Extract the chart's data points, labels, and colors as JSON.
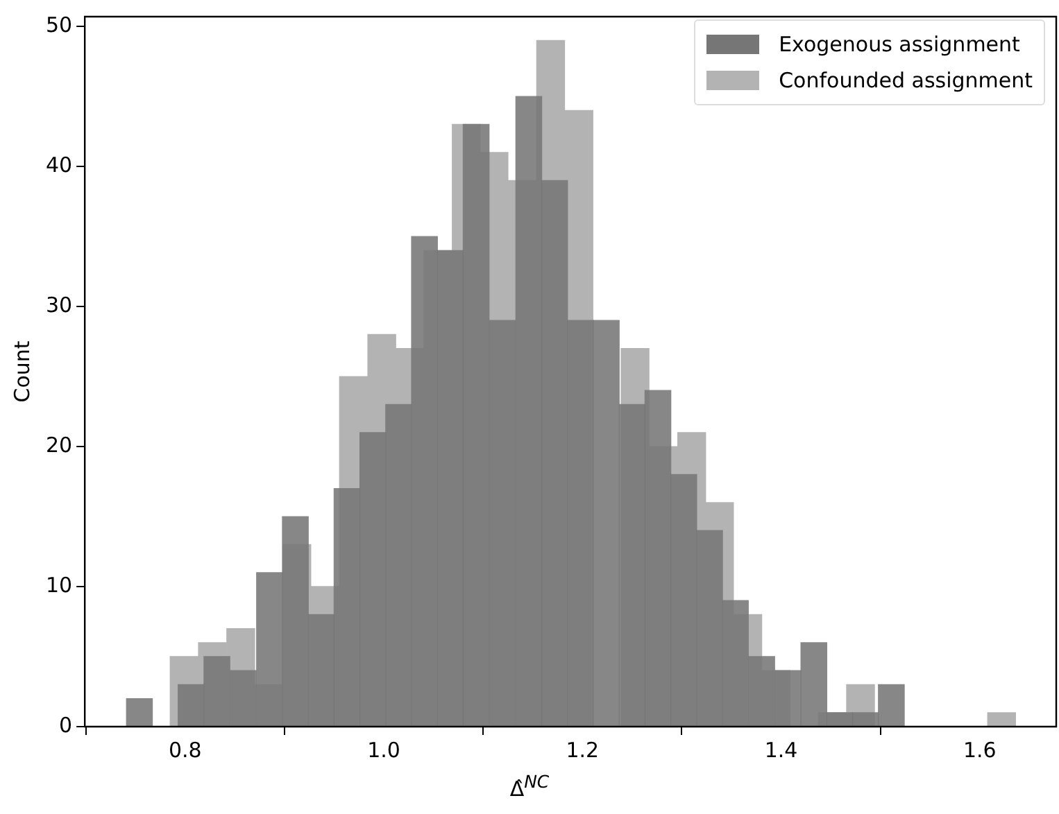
{
  "chart_data": {
    "type": "histogram",
    "xlabel": "Δ̂$^{NC}$",
    "ylabel": "Count",
    "bins": [
      0.741,
      0.767,
      0.793,
      0.819,
      0.845,
      0.872,
      0.898,
      0.924,
      0.95,
      0.976,
      1.002,
      1.028,
      1.054,
      1.08,
      1.106,
      1.133,
      1.159,
      1.185,
      1.211,
      1.237,
      1.263,
      1.289,
      1.315,
      1.341,
      1.367,
      1.394,
      1.42,
      1.446,
      1.472,
      1.498,
      1.524
    ],
    "series": [
      {
        "name": "Exogenous assignment",
        "color": "#767676",
        "values": [
          2,
          0,
          3,
          5,
          4,
          11,
          15,
          8,
          17,
          21,
          23,
          35,
          34,
          43,
          29,
          45,
          39,
          29,
          29,
          23,
          24,
          18,
          14,
          9,
          5,
          4,
          6,
          1,
          1,
          3
        ]
      },
      {
        "name": "Confounded assignment",
        "color": "#b3b3b3",
        "bins": [
          0.785,
          0.813,
          0.842,
          0.87,
          0.898,
          0.927,
          0.955,
          0.984,
          1.012,
          1.04,
          1.069,
          1.097,
          1.125,
          1.154,
          1.182,
          1.211,
          1.239,
          1.267,
          1.296,
          1.324,
          1.352,
          1.381,
          1.409,
          1.437,
          1.466,
          1.494,
          1.522,
          1.551,
          1.579,
          1.608,
          1.636
        ],
        "values": [
          5,
          6,
          7,
          3,
          13,
          10,
          25,
          28,
          27,
          34,
          43,
          41,
          39,
          49,
          44,
          null,
          27,
          20,
          21,
          16,
          8,
          4,
          null,
          1,
          3,
          0,
          0,
          0,
          0,
          1
        ]
      }
    ],
    "xlim": [
      0.699,
      1.677
    ],
    "xticks": [
      0.8,
      {
        "value": 1,
        "label": "1.0"
      },
      1.2,
      1.4,
      1.6
    ],
    "ylim": [
      0,
      50.7
    ],
    "yticks": [
      0,
      10,
      20,
      30,
      40,
      50
    ],
    "grid": false,
    "legend": "top right"
  }
}
